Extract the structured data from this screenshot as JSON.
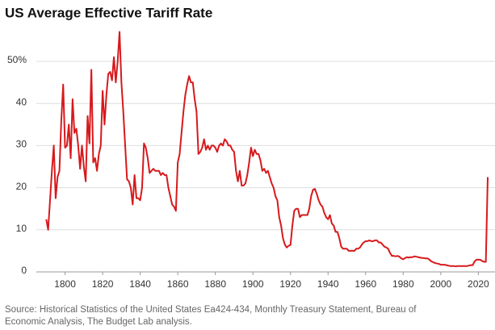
{
  "chart_data": {
    "type": "line",
    "title": "US Average Effective Tariff Rate",
    "source": [
      "Source: Historical Statistics of the United States Ea424-434, Monthly Treasury Statement, Bureau of",
      "Economic Analysis, The Budget Lab analysis."
    ],
    "xlim": [
      1786,
      2025
    ],
    "xticks": [
      1800,
      1820,
      1840,
      1860,
      1880,
      1900,
      1920,
      1940,
      1960,
      1980,
      2000,
      2020
    ],
    "ylim": [
      0,
      57
    ],
    "yticks": [
      0,
      10,
      20,
      30,
      40,
      {
        "value": 50,
        "label": "50%"
      }
    ],
    "grid": true,
    "series": [
      {
        "name": "Average effective tariff rate",
        "color": "#d7191c",
        "x": [
          1790,
          1791,
          1792,
          1793,
          1794,
          1795,
          1796,
          1797,
          1798,
          1799,
          1800,
          1801,
          1802,
          1803,
          1804,
          1805,
          1806,
          1807,
          1808,
          1809,
          1810,
          1811,
          1812,
          1813,
          1814,
          1815,
          1816,
          1817,
          1818,
          1819,
          1820,
          1821,
          1822,
          1823,
          1824,
          1825,
          1826,
          1827,
          1828,
          1829,
          1830,
          1831,
          1832,
          1833,
          1834,
          1835,
          1836,
          1837,
          1838,
          1839,
          1840,
          1841,
          1842,
          1843,
          1844,
          1845,
          1846,
          1847,
          1848,
          1849,
          1850,
          1851,
          1852,
          1853,
          1854,
          1855,
          1856,
          1857,
          1858,
          1859,
          1860,
          1861,
          1862,
          1863,
          1864,
          1865,
          1866,
          1867,
          1868,
          1869,
          1870,
          1871,
          1872,
          1873,
          1874,
          1875,
          1876,
          1877,
          1878,
          1879,
          1880,
          1881,
          1882,
          1883,
          1884,
          1885,
          1886,
          1887,
          1888,
          1889,
          1890,
          1891,
          1892,
          1893,
          1894,
          1895,
          1896,
          1897,
          1898,
          1899,
          1900,
          1901,
          1902,
          1903,
          1904,
          1905,
          1906,
          1907,
          1908,
          1909,
          1910,
          1911,
          1912,
          1913,
          1914,
          1915,
          1916,
          1917,
          1918,
          1919,
          1920,
          1921,
          1922,
          1923,
          1924,
          1925,
          1926,
          1927,
          1928,
          1929,
          1930,
          1931,
          1932,
          1933,
          1934,
          1935,
          1936,
          1937,
          1938,
          1939,
          1940,
          1941,
          1942,
          1943,
          1944,
          1945,
          1946,
          1947,
          1948,
          1949,
          1950,
          1951,
          1952,
          1953,
          1954,
          1955,
          1956,
          1957,
          1958,
          1959,
          1960,
          1961,
          1962,
          1963,
          1964,
          1965,
          1966,
          1967,
          1968,
          1969,
          1970,
          1971,
          1972,
          1973,
          1974,
          1975,
          1976,
          1977,
          1978,
          1979,
          1980,
          1981,
          1982,
          1983,
          1984,
          1985,
          1986,
          1987,
          1988,
          1989,
          1990,
          1991,
          1992,
          1993,
          1994,
          1995,
          1996,
          1997,
          1998,
          1999,
          2000,
          2001,
          2002,
          2003,
          2004,
          2005,
          2006,
          2007,
          2008,
          2009,
          2010,
          2011,
          2012,
          2013,
          2014,
          2015,
          2016,
          2017,
          2018,
          2019,
          2020,
          2021,
          2022,
          2023,
          2024,
          2025
        ],
        "values": [
          12.5,
          10,
          17,
          24,
          30,
          17.5,
          22.5,
          24,
          36,
          44.5,
          29.5,
          30,
          35,
          27,
          41,
          33,
          34,
          30,
          24.5,
          30,
          25,
          21.5,
          37,
          30.5,
          48,
          26,
          27,
          24,
          28,
          30,
          43,
          35,
          42,
          47,
          47.5,
          45.5,
          51,
          45,
          50,
          57,
          45,
          38,
          30,
          22,
          21.5,
          20,
          16,
          23,
          17.5,
          17.5,
          17,
          20,
          30.5,
          29.5,
          27,
          23.5,
          24,
          24.5,
          24,
          24,
          24,
          23,
          23.5,
          23,
          23,
          20,
          18,
          16,
          15.5,
          14.5,
          26,
          28,
          33,
          38,
          42,
          44.5,
          46.5,
          45,
          45,
          41,
          38,
          28,
          28.5,
          29.5,
          31.5,
          29,
          30,
          29,
          30,
          30,
          29.5,
          28.5,
          30,
          30.5,
          30,
          31.5,
          31,
          30,
          30,
          29,
          28.5,
          24,
          21.5,
          24,
          20.5,
          20.5,
          21,
          23,
          26,
          29.5,
          27.5,
          29,
          28,
          28,
          26.5,
          24,
          24.5,
          23.5,
          24,
          22.5,
          21,
          20,
          18,
          17,
          13,
          11,
          8,
          6.5,
          5.8,
          6.2,
          6.4,
          11,
          14.5,
          15,
          15,
          13,
          13.5,
          13.5,
          13.5,
          13.5,
          15,
          18,
          19.5,
          19.7,
          18.5,
          17,
          16,
          15.5,
          14,
          13,
          12.5,
          13.5,
          11.5,
          11,
          9.5,
          9.5,
          8,
          6,
          5.5,
          5.5,
          5.5,
          5,
          5,
          5,
          5,
          5.5,
          5.5,
          5.8,
          6.5,
          7,
          7.3,
          7.3,
          7.5,
          7.3,
          7.3,
          7.5,
          7.5,
          7,
          7,
          6.5,
          6,
          5.8,
          5.5,
          4.5,
          3.8,
          3.8,
          3.7,
          3.8,
          3.6,
          3.2,
          3,
          3.3,
          3.5,
          3.4,
          3.5,
          3.5,
          3.7,
          3.6,
          3.5,
          3.4,
          3.3,
          3.3,
          3.2,
          3.2,
          2.9,
          2.5,
          2.3,
          2.1,
          2,
          1.9,
          1.7,
          1.7,
          1.7,
          1.6,
          1.5,
          1.4,
          1.4,
          1.4,
          1.3,
          1.4,
          1.4,
          1.4,
          1.4,
          1.4,
          1.4,
          1.5,
          1.6,
          1.6,
          2.5,
          2.9,
          2.9,
          2.9,
          2.6,
          2.4,
          2.4,
          22.5
        ]
      }
    ]
  }
}
